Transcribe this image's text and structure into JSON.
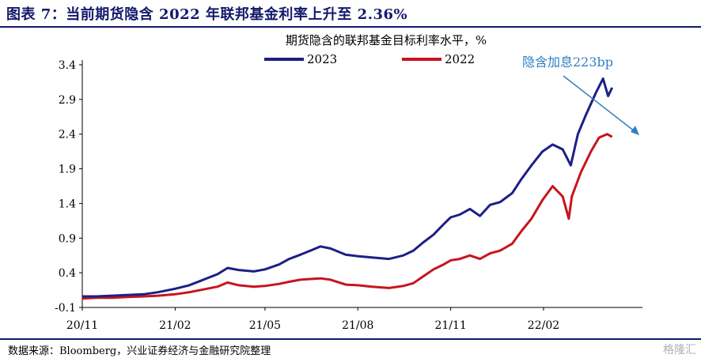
{
  "header": {
    "figure_title": "图表 7：当前期货隐含 2022 年联邦基金利率上升至 2.36%",
    "source": "数据来源：Bloomberg，兴业证券经济与金融研究院整理",
    "watermark": "格隆汇"
  },
  "colors": {
    "title": "#12196b",
    "series_2023": "#1c1f86",
    "series_2022": "#c8141e",
    "annotation": "#2f7fc1"
  },
  "chart_data": {
    "type": "line",
    "title": "期货隐含的联邦基金目标利率水平，%",
    "xlabel": "",
    "ylabel": "",
    "ylim": [
      -0.1,
      3.4
    ],
    "yticks": [
      "3.4",
      "2.9",
      "2.4",
      "1.9",
      "1.4",
      "0.9",
      "0.4",
      "-0.1"
    ],
    "xticks": [
      "20/11",
      "21/02",
      "21/05",
      "21/08",
      "21/11",
      "22/02"
    ],
    "legend_position": "top",
    "annotation": {
      "text": "隐含加息223bp"
    },
    "series": [
      {
        "name": "2023",
        "points": [
          [
            "2020-11-01",
            0.06
          ],
          [
            "2020-11-15",
            0.06
          ],
          [
            "2020-12-01",
            0.07
          ],
          [
            "2020-12-15",
            0.08
          ],
          [
            "2021-01-01",
            0.09
          ],
          [
            "2021-01-15",
            0.12
          ],
          [
            "2021-02-01",
            0.17
          ],
          [
            "2021-02-15",
            0.22
          ],
          [
            "2021-03-01",
            0.3
          ],
          [
            "2021-03-15",
            0.38
          ],
          [
            "2021-03-25",
            0.47
          ],
          [
            "2021-04-05",
            0.44
          ],
          [
            "2021-04-20",
            0.42
          ],
          [
            "2021-05-01",
            0.45
          ],
          [
            "2021-05-15",
            0.52
          ],
          [
            "2021-05-25",
            0.6
          ],
          [
            "2021-06-05",
            0.66
          ],
          [
            "2021-06-15",
            0.72
          ],
          [
            "2021-06-25",
            0.78
          ],
          [
            "2021-07-05",
            0.75
          ],
          [
            "2021-07-20",
            0.66
          ],
          [
            "2021-08-01",
            0.64
          ],
          [
            "2021-08-15",
            0.62
          ],
          [
            "2021-09-01",
            0.6
          ],
          [
            "2021-09-15",
            0.65
          ],
          [
            "2021-09-25",
            0.72
          ],
          [
            "2021-10-05",
            0.84
          ],
          [
            "2021-10-15",
            0.95
          ],
          [
            "2021-10-25",
            1.1
          ],
          [
            "2021-11-01",
            1.2
          ],
          [
            "2021-11-10",
            1.24
          ],
          [
            "2021-11-20",
            1.32
          ],
          [
            "2021-11-30",
            1.22
          ],
          [
            "2021-12-10",
            1.38
          ],
          [
            "2021-12-20",
            1.42
          ],
          [
            "2022-01-01",
            1.55
          ],
          [
            "2022-01-10",
            1.75
          ],
          [
            "2022-01-20",
            1.95
          ],
          [
            "2022-01-31",
            2.15
          ],
          [
            "2022-02-10",
            2.25
          ],
          [
            "2022-02-20",
            2.18
          ],
          [
            "2022-02-28",
            1.95
          ],
          [
            "2022-03-07",
            2.4
          ],
          [
            "2022-03-15",
            2.68
          ],
          [
            "2022-03-25",
            3.0
          ],
          [
            "2022-04-01",
            3.2
          ],
          [
            "2022-04-06",
            2.95
          ],
          [
            "2022-04-10",
            3.07
          ]
        ]
      },
      {
        "name": "2022",
        "points": [
          [
            "2020-11-01",
            0.03
          ],
          [
            "2020-11-15",
            0.04
          ],
          [
            "2020-12-01",
            0.04
          ],
          [
            "2020-12-15",
            0.05
          ],
          [
            "2021-01-01",
            0.06
          ],
          [
            "2021-01-15",
            0.07
          ],
          [
            "2021-02-01",
            0.09
          ],
          [
            "2021-02-15",
            0.12
          ],
          [
            "2021-03-01",
            0.16
          ],
          [
            "2021-03-15",
            0.2
          ],
          [
            "2021-03-25",
            0.26
          ],
          [
            "2021-04-05",
            0.22
          ],
          [
            "2021-04-20",
            0.2
          ],
          [
            "2021-05-01",
            0.21
          ],
          [
            "2021-05-15",
            0.24
          ],
          [
            "2021-05-25",
            0.27
          ],
          [
            "2021-06-05",
            0.3
          ],
          [
            "2021-06-15",
            0.31
          ],
          [
            "2021-06-25",
            0.32
          ],
          [
            "2021-07-05",
            0.3
          ],
          [
            "2021-07-20",
            0.23
          ],
          [
            "2021-08-01",
            0.22
          ],
          [
            "2021-08-15",
            0.2
          ],
          [
            "2021-09-01",
            0.18
          ],
          [
            "2021-09-15",
            0.21
          ],
          [
            "2021-09-25",
            0.25
          ],
          [
            "2021-10-05",
            0.35
          ],
          [
            "2021-10-15",
            0.45
          ],
          [
            "2021-10-25",
            0.52
          ],
          [
            "2021-11-01",
            0.58
          ],
          [
            "2021-11-10",
            0.6
          ],
          [
            "2021-11-20",
            0.65
          ],
          [
            "2021-11-30",
            0.6
          ],
          [
            "2021-12-10",
            0.68
          ],
          [
            "2021-12-20",
            0.72
          ],
          [
            "2022-01-01",
            0.82
          ],
          [
            "2022-01-10",
            1.0
          ],
          [
            "2022-01-20",
            1.18
          ],
          [
            "2022-01-31",
            1.45
          ],
          [
            "2022-02-10",
            1.65
          ],
          [
            "2022-02-20",
            1.5
          ],
          [
            "2022-02-26",
            1.18
          ],
          [
            "2022-03-01",
            1.5
          ],
          [
            "2022-03-10",
            1.85
          ],
          [
            "2022-03-20",
            2.15
          ],
          [
            "2022-03-28",
            2.35
          ],
          [
            "2022-04-05",
            2.4
          ],
          [
            "2022-04-10",
            2.36
          ]
        ]
      }
    ]
  }
}
